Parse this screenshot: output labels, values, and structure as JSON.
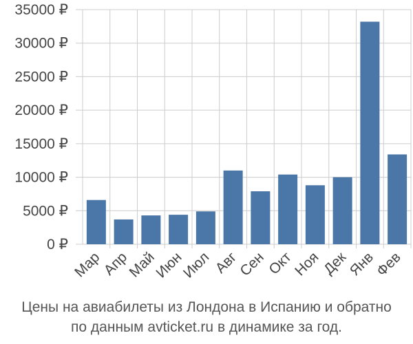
{
  "chart_data": {
    "type": "bar",
    "categories": [
      "Мар",
      "Апр",
      "Май",
      "Июн",
      "Июл",
      "Авг",
      "Сен",
      "Окт",
      "Ноя",
      "Дек",
      "Янв",
      "Фев"
    ],
    "values": [
      6600,
      3700,
      4300,
      4400,
      4900,
      11000,
      7900,
      10400,
      8800,
      10000,
      33200,
      13400
    ],
    "ylim": [
      0,
      35000
    ],
    "yticks": [
      0,
      5000,
      10000,
      15000,
      20000,
      25000,
      30000,
      35000
    ],
    "ytick_labels": [
      "0 ₽",
      "5000 ₽",
      "10000 ₽",
      "15000 ₽",
      "20000 ₽",
      "25000 ₽",
      "30000 ₽",
      "35000 ₽"
    ],
    "grid": true,
    "bar_color": "#4a76a8",
    "grid_color": "#cccccc"
  },
  "caption": {
    "line1": "Цены на авиабилеты из Лондона в Испанию и обратно",
    "line2": "по данным avticket.ru в динамике за год."
  }
}
